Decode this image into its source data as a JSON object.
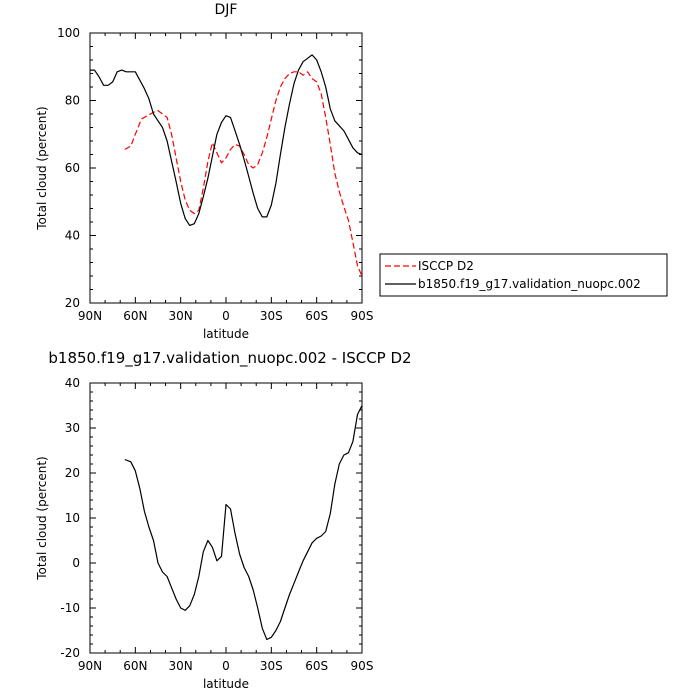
{
  "chart_data": [
    {
      "type": "line",
      "title": "DJF",
      "xlabel": "latitude",
      "ylabel": "Total cloud (percent)",
      "xlim": [
        90,
        -90
      ],
      "ylim": [
        20,
        100
      ],
      "xticks": [
        90,
        60,
        30,
        0,
        -30,
        -60,
        -90
      ],
      "xtick_labels": [
        "90N",
        "60N",
        "30N",
        "0",
        "30S",
        "60S",
        "90S"
      ],
      "yticks": [
        20,
        40,
        60,
        80,
        100
      ],
      "legend_position": "right",
      "series": [
        {
          "name": "ISCCP D2",
          "color": "#ff0000",
          "dash": "dashed",
          "x": [
            67,
            63,
            60,
            56,
            52,
            48,
            45,
            42,
            39,
            36,
            33,
            30,
            27,
            24,
            21,
            18,
            15,
            12,
            9,
            6,
            3,
            0,
            -3,
            -6,
            -9,
            -12,
            -15,
            -18,
            -21,
            -24,
            -27,
            -30,
            -33,
            -36,
            -39,
            -42,
            -45,
            -48,
            -51,
            -54,
            -57,
            -60,
            -63,
            -66,
            -69,
            -72,
            -75,
            -78,
            -81,
            -84,
            -87,
            -90
          ],
          "y": [
            65.5,
            66.5,
            70,
            74.5,
            75.5,
            76.5,
            77,
            76,
            75,
            70,
            63,
            56,
            50.5,
            47.5,
            46.5,
            47.5,
            54,
            62,
            67.5,
            64.5,
            61.5,
            63,
            65.5,
            67,
            66.5,
            64,
            61,
            60,
            61,
            64.5,
            69,
            74.5,
            80,
            84,
            86.5,
            88,
            88.5,
            88.5,
            87.5,
            88.5,
            86.5,
            85.5,
            82,
            75,
            67,
            58.5,
            53,
            48.5,
            44.5,
            38,
            31,
            28
          ]
        },
        {
          "name": "b1850.f19_g17.validation_nuopc.002",
          "color": "#000000",
          "dash": "solid",
          "x": [
            90,
            87,
            84,
            81,
            78,
            75,
            72,
            69,
            66,
            63,
            60,
            57,
            54,
            51,
            48,
            45,
            42,
            39,
            36,
            33,
            30,
            27,
            24,
            21,
            18,
            15,
            12,
            9,
            6,
            3,
            0,
            -3,
            -6,
            -9,
            -12,
            -15,
            -18,
            -21,
            -24,
            -27,
            -30,
            -33,
            -36,
            -39,
            -42,
            -45,
            -48,
            -51,
            -54,
            -57,
            -60,
            -63,
            -66,
            -69,
            -72,
            -75,
            -78,
            -81,
            -84,
            -87,
            -90
          ],
          "y": [
            89,
            89,
            87,
            84.5,
            84.5,
            85.5,
            88.5,
            89,
            88.5,
            88.5,
            88.5,
            86,
            83.5,
            80.5,
            76,
            74,
            72,
            68,
            62,
            56,
            49.5,
            45,
            43,
            43.5,
            46.5,
            51.5,
            57,
            63.5,
            70,
            73.5,
            75.5,
            75,
            71,
            67,
            62.5,
            57.5,
            52.5,
            48,
            45.5,
            45.5,
            49,
            55.5,
            64,
            72,
            79,
            85,
            89,
            91.5,
            92.5,
            93.5,
            92,
            88.5,
            84,
            77.5,
            74,
            72.5,
            71,
            68.5,
            66,
            64.5,
            64
          ]
        }
      ]
    },
    {
      "type": "line",
      "title": "b1850.f19_g17.validation_nuopc.002 - ISCCP D2",
      "xlabel": "latitude",
      "ylabel": "Total cloud (percent)",
      "xlim": [
        90,
        -90
      ],
      "ylim": [
        -20,
        40
      ],
      "xticks": [
        90,
        60,
        30,
        0,
        -30,
        -60,
        -90
      ],
      "xtick_labels": [
        "90N",
        "60N",
        "30N",
        "0",
        "30S",
        "60S",
        "90S"
      ],
      "yticks": [
        -20,
        -10,
        0,
        10,
        20,
        30,
        40
      ],
      "series": [
        {
          "color": "#000000",
          "dash": "solid",
          "x": [
            67,
            63,
            60,
            57,
            54,
            51,
            48,
            45,
            42,
            39,
            36,
            33,
            30,
            27,
            24,
            21,
            18,
            15,
            12,
            9,
            6,
            3,
            0,
            -3,
            -6,
            -9,
            -12,
            -15,
            -18,
            -21,
            -24,
            -27,
            -30,
            -33,
            -36,
            -39,
            -42,
            -45,
            -48,
            -51,
            -54,
            -57,
            -60,
            -63,
            -66,
            -69,
            -72,
            -75,
            -78,
            -81,
            -84,
            -87,
            -90
          ],
          "y": [
            23,
            22.5,
            20.5,
            16.5,
            11.5,
            8,
            5,
            0,
            -2,
            -3,
            -5.5,
            -8,
            -10,
            -10.5,
            -9.5,
            -7,
            -3,
            2.5,
            5,
            3.5,
            0.5,
            1.5,
            13,
            12,
            6.5,
            2,
            -1,
            -3,
            -6,
            -10,
            -14.5,
            -17,
            -16.5,
            -15,
            -13,
            -10,
            -7,
            -4.5,
            -2,
            0.5,
            2.5,
            4.5,
            5.5,
            6,
            7,
            11,
            17.5,
            22,
            24,
            24.5,
            27,
            33,
            35
          ]
        }
      ]
    }
  ]
}
